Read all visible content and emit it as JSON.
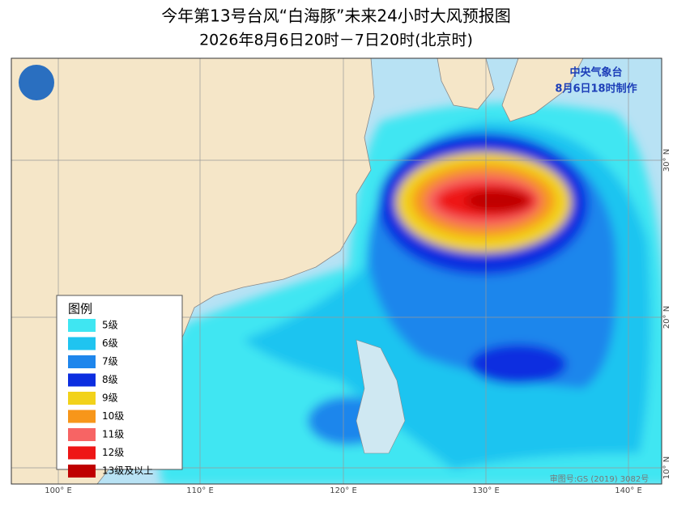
{
  "header": {
    "title": "今年第13号台风“白海豚”未来24小时大风预报图",
    "subtitle": "2026年8月6日20时－7日20时(北京时)"
  },
  "issuer": {
    "agency": "中央气象台",
    "issued": "8月6日18时制作"
  },
  "legend": {
    "title": "图例",
    "items": [
      {
        "label": "5级",
        "color": "#3fe6f2"
      },
      {
        "label": "6级",
        "color": "#1fc4f0"
      },
      {
        "label": "7级",
        "color": "#1e86ec"
      },
      {
        "label": "8级",
        "color": "#0c2ee0"
      },
      {
        "label": "9级",
        "color": "#f2d21a"
      },
      {
        "label": "10级",
        "color": "#f7961a"
      },
      {
        "label": "11级",
        "color": "#f76464"
      },
      {
        "label": "12级",
        "color": "#ee1616"
      },
      {
        "label": "13级及以上",
        "color": "#bf0000"
      }
    ]
  },
  "axes": {
    "lon_labels": [
      "100° E",
      "110° E",
      "120° E",
      "130° E",
      "140° E"
    ],
    "lat_labels": [
      "30° N",
      "20° N",
      "10° N"
    ]
  },
  "credit": "审图号:GS (2019) 3082号"
}
